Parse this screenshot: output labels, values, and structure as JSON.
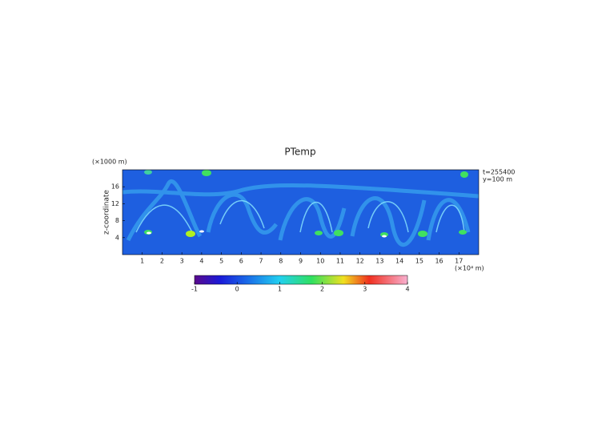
{
  "chart_data": {
    "type": "heatmap",
    "title": "PTemp",
    "x_label": "(×10⁴ m)",
    "y_unit_label": "(×1000 m)",
    "y_label": "z-coordinate",
    "annotations": [
      "t=255400",
      "y=100 m"
    ],
    "xlim": [
      0,
      18
    ],
    "xticks": [
      1,
      2,
      3,
      4,
      5,
      6,
      7,
      8,
      9,
      10,
      11,
      12,
      13,
      14,
      15,
      16,
      17
    ],
    "ylim": [
      0,
      20
    ],
    "yticks": [
      4,
      8,
      12,
      16
    ],
    "colorbar": {
      "lim": [
        -1,
        4
      ],
      "ticks": [
        -1,
        0,
        1,
        2,
        3,
        4
      ]
    }
  }
}
